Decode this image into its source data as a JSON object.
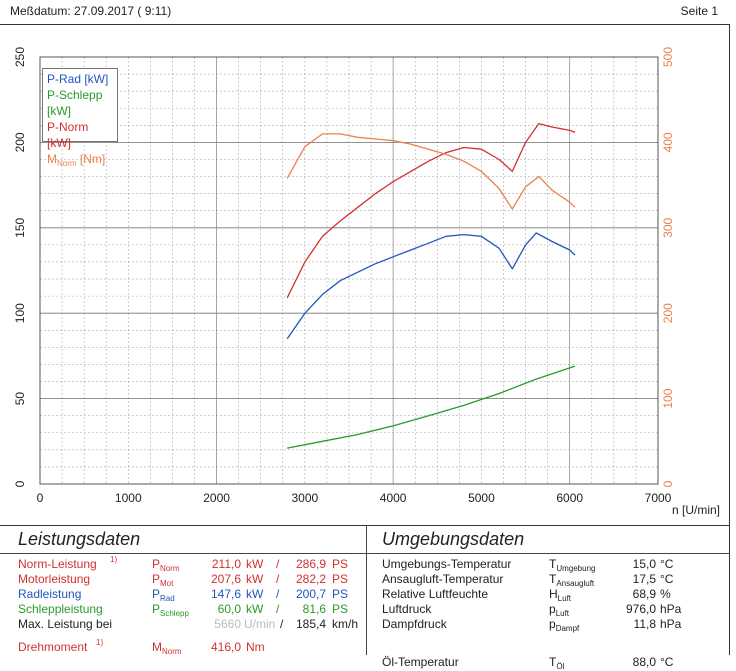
{
  "header": {
    "date_label": "Meßdatum: 27.09.2017 ( 9:11)",
    "page_label": "Seite 1"
  },
  "legend": {
    "p_rad": "P-Rad [kW]",
    "p_schlepp": "P-Schlepp [kW]",
    "p_norm": "P-Norm [kW]",
    "m_norm_main": "M",
    "m_norm_sub": "Norm",
    "m_norm_unit": " [Nm]"
  },
  "colors": {
    "p_rad": "#2255c0",
    "p_schlepp": "#2a9a2a",
    "p_norm": "#d23030",
    "m_norm": "#ee8050",
    "grid": "#999"
  },
  "chart_data": {
    "type": "line",
    "xlabel": "n [U/min]",
    "xlim": [
      0,
      7000
    ],
    "ylim_left": [
      0,
      250
    ],
    "ylim_right": [
      0,
      500
    ],
    "x_ticks": [
      0,
      1000,
      2000,
      3000,
      4000,
      5000,
      6000,
      7000
    ],
    "y_ticks_left": [
      0,
      50,
      100,
      150,
      200,
      250
    ],
    "y_ticks_right": [
      0,
      100,
      200,
      300,
      400,
      500
    ],
    "series": [
      {
        "name": "P-Rad [kW]",
        "axis": "left",
        "color": "#2255c0",
        "x": [
          2800,
          3000,
          3200,
          3400,
          3600,
          3800,
          4000,
          4200,
          4400,
          4600,
          4800,
          5000,
          5200,
          5350,
          5500,
          5620,
          5800,
          6000,
          6060
        ],
        "y": [
          85,
          100,
          111,
          119,
          124,
          129,
          133,
          137,
          141,
          145,
          146,
          145,
          138,
          126,
          140,
          147,
          142,
          137,
          134
        ]
      },
      {
        "name": "P-Schlepp [kW]",
        "axis": "left",
        "color": "#2a9a2a",
        "x": [
          2800,
          3200,
          3600,
          4000,
          4400,
          4800,
          5200,
          5600,
          6060
        ],
        "y": [
          21,
          25,
          29,
          34,
          40,
          46,
          53,
          61,
          69
        ]
      },
      {
        "name": "P-Norm [kW]",
        "axis": "left",
        "color": "#d23030",
        "x": [
          2800,
          3000,
          3200,
          3400,
          3600,
          3800,
          4000,
          4200,
          4400,
          4600,
          4800,
          5000,
          5200,
          5350,
          5500,
          5650,
          5800,
          6000,
          6060
        ],
        "y": [
          109,
          130,
          145,
          154,
          162,
          170,
          177,
          183,
          189,
          194,
          197,
          196,
          190,
          183,
          200,
          211,
          209,
          207,
          206
        ]
      },
      {
        "name": "M Norm [Nm]",
        "axis": "right",
        "color": "#ee8050",
        "x": [
          2800,
          3000,
          3200,
          3400,
          3600,
          3800,
          4000,
          4200,
          4400,
          4600,
          4800,
          5000,
          5200,
          5350,
          5500,
          5650,
          5800,
          6000,
          6060
        ],
        "y": [
          358,
          395,
          410,
          410,
          406,
          404,
          402,
          398,
          392,
          386,
          378,
          366,
          346,
          322,
          348,
          360,
          344,
          330,
          324
        ]
      }
    ]
  },
  "leistung": {
    "title": "Leistungsdaten",
    "rows": [
      {
        "label": "Norm-Leistung",
        "note": "1)",
        "sym": "P",
        "sub": "Norm",
        "kw": "211,0",
        "u1": "kW",
        "sep": "/",
        "ps": "286,9",
        "u2": "PS",
        "cls": "red"
      },
      {
        "label": "Motorleistung",
        "note": "",
        "sym": "P",
        "sub": "Mot",
        "kw": "207,6",
        "u1": "kW",
        "sep": "/",
        "ps": "282,2",
        "u2": "PS",
        "cls": "red"
      },
      {
        "label": "Radleistung",
        "note": "",
        "sym": "P",
        "sub": "Rad",
        "kw": "147,6",
        "u1": "kW",
        "sep": "/",
        "ps": "200,7",
        "u2": "PS",
        "cls": "blue"
      },
      {
        "label": "Schleppleistung",
        "note": "",
        "sym": "P",
        "sub": "Schlepp",
        "kw": "60,0",
        "u1": "kW",
        "sep": "/",
        "ps": "81,6",
        "u2": "PS",
        "cls": "green"
      }
    ],
    "maxrow": {
      "label": "Max. Leistung bei",
      "rpm": "5660",
      "rpm_unit": "U/min",
      "sep": "/",
      "speed": "185,4",
      "speed_unit": "km/h"
    },
    "torque": {
      "label": "Drehmoment",
      "note": "1)",
      "sym": "M",
      "sub": "Norm",
      "value": "416,0",
      "unit": "Nm"
    }
  },
  "umgebung": {
    "title": "Umgebungsdaten",
    "rows": [
      {
        "label": "Umgebungs-Temperatur",
        "sym": "T",
        "sub": "Umgebung",
        "value": "15,0",
        "unit": "°C"
      },
      {
        "label": "Ansaugluft-Temperatur",
        "sym": "T",
        "sub": "Ansaugluft",
        "value": "17,5",
        "unit": "°C"
      },
      {
        "label": "Relative Luftfeuchte",
        "sym": "H",
        "sub": "Luft",
        "value": "68,9",
        "unit": "%"
      },
      {
        "label": "Luftdruck",
        "sym": "p",
        "sub": "Luft",
        "value": "976,0",
        "unit": "hPa"
      },
      {
        "label": "Dampfdruck",
        "sym": "p",
        "sub": "Dampf",
        "value": "11,8",
        "unit": "hPa"
      },
      {
        "label": "Öl-Temperatur",
        "sym": "T",
        "sub": "Öl",
        "value": "88,0",
        "unit": "°C"
      }
    ]
  }
}
